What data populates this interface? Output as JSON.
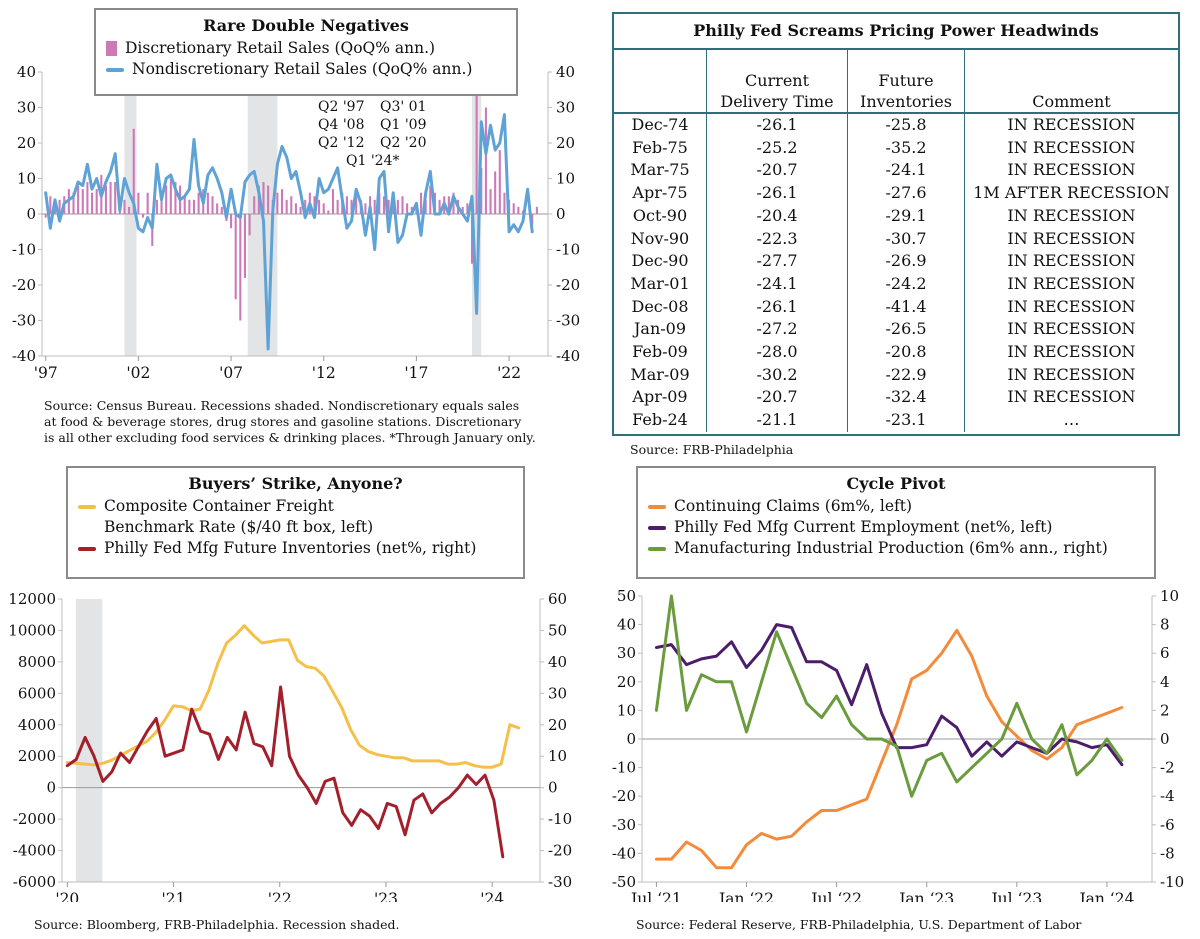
{
  "panels": {
    "retail": {
      "title": "Rare Double Negatives",
      "legend": [
        "Discretionary Retail Sales (QoQ% ann.)",
        "Nondiscretionary Retail Sales (QoQ% ann.)"
      ],
      "annotation": [
        "Q2 '97",
        "Q3' 01",
        "Q4 '08",
        "Q1 '09",
        "Q2 '12",
        "Q2 '20",
        "Q1 '24*"
      ],
      "source": [
        "Source: Census Bureau. Recessions shaded. Nondiscretionary equals sales",
        "at food & beverage stores, drug stores and gasoline stations. Discretionary",
        "is all other excluding food services & drinking places. *Through January only."
      ]
    },
    "table": {
      "title": "Philly Fed Screams Pricing Power Headwinds",
      "headers": [
        "",
        "Current\nDelivery Time",
        "Future\nInventories",
        "Comment"
      ],
      "rows": [
        [
          "Dec-74",
          "-26.1",
          "-25.8",
          "IN RECESSION"
        ],
        [
          "Feb-75",
          "-25.2",
          "-35.2",
          "IN RECESSION"
        ],
        [
          "Mar-75",
          "-20.7",
          "-24.1",
          "IN RECESSION"
        ],
        [
          "Apr-75",
          "-26.1",
          "-27.6",
          "1M AFTER RECESSION"
        ],
        [
          "Oct-90",
          "-20.4",
          "-29.1",
          "IN RECESSION"
        ],
        [
          "Nov-90",
          "-22.3",
          "-30.7",
          "IN RECESSION"
        ],
        [
          "Dec-90",
          "-27.7",
          "-26.9",
          "IN RECESSION"
        ],
        [
          "Mar-01",
          "-24.1",
          "-24.2",
          "IN RECESSION"
        ],
        [
          "Dec-08",
          "-26.1",
          "-41.4",
          "IN RECESSION"
        ],
        [
          "Jan-09",
          "-27.2",
          "-26.5",
          "IN RECESSION"
        ],
        [
          "Feb-09",
          "-28.0",
          "-20.8",
          "IN RECESSION"
        ],
        [
          "Mar-09",
          "-30.2",
          "-22.9",
          "IN RECESSION"
        ],
        [
          "Apr-09",
          "-20.7",
          "-32.4",
          "IN RECESSION"
        ],
        [
          "Feb-24",
          "-21.1",
          "-23.1",
          "…"
        ]
      ],
      "source": "Source: FRB-Philadelphia"
    },
    "freight": {
      "title": "Buyers’ Strike, Anyone?",
      "legend": [
        "Composite Container Freight Benchmark Rate ($/40 ft box, left)",
        "Philly Fed Mfg Future Inventories (net%, right)"
      ],
      "source": "Source: Bloomberg, FRB-Philadelphia. Recession shaded."
    },
    "cycle": {
      "title": "Cycle Pivot",
      "legend": [
        "Continuing Claims (6m%, left)",
        "Philly Fed Mfg Current Employment (net%, left)",
        "Manufacturing Industrial Production (6m% ann., right)"
      ],
      "source": "Source: Federal Reserve, FRB-Philadelphia, U.S. Department of Labor"
    }
  },
  "colors": {
    "discretionary": "#cc79b8",
    "nondiscretionary": "#5fa3d6",
    "freight": "#f5c04a",
    "inventories": "#a31f2b",
    "claims": "#f28b3a",
    "employment": "#4b1d6b",
    "production": "#6a9b3c",
    "recession": "#e3e4e6",
    "table_border": "#2f6f79"
  },
  "chart_data": [
    {
      "id": "retail",
      "type": "bar+line",
      "title": "Rare Double Negatives",
      "x_start": 1997.0,
      "x_step": 0.25,
      "xticks": [
        "'97",
        "'02",
        "'07",
        "'12",
        "'17",
        "'22"
      ],
      "xtick_values": [
        1997,
        2002,
        2007,
        2012,
        2017,
        2022
      ],
      "ylim": [
        -40,
        40
      ],
      "yticks_left": [
        -40,
        -30,
        -20,
        -10,
        0,
        10,
        20,
        30,
        40
      ],
      "yticks_right": [
        -40,
        -30,
        -20,
        -10,
        0,
        10,
        20,
        30,
        40
      ],
      "recessions": [
        [
          2001.25,
          2001.9
        ],
        [
          2007.9,
          2009.5
        ],
        [
          2020.0,
          2020.5
        ]
      ],
      "series": [
        {
          "name": "Discretionary Retail Sales (QoQ% ann.)",
          "kind": "bar",
          "values": [
            -1,
            5,
            2,
            4,
            5,
            7,
            6,
            8,
            7,
            9,
            6,
            7,
            11,
            8,
            9,
            9,
            3,
            4,
            2,
            24,
            6,
            -1,
            6,
            -9,
            4,
            5,
            8,
            10,
            9,
            8,
            5,
            4,
            4,
            6,
            7,
            6,
            5,
            3,
            2,
            -2,
            -4,
            -24,
            -30,
            -18,
            -6,
            5,
            8,
            9,
            8,
            4,
            6,
            7,
            4,
            5,
            3,
            2,
            4,
            6,
            5,
            4,
            3,
            1,
            7,
            4,
            6,
            5,
            4,
            5,
            4,
            3,
            5,
            4,
            6,
            5,
            4,
            3,
            4,
            5,
            3,
            2,
            3,
            6,
            4,
            8,
            6,
            4,
            5,
            5,
            6,
            4,
            2,
            3,
            -14,
            36,
            13,
            30,
            7,
            12,
            18,
            6,
            4,
            3,
            2,
            1,
            0,
            -3,
            2
          ]
        },
        {
          "name": "Nondiscretionary Retail Sales (QoQ% ann.)",
          "kind": "line",
          "values": [
            6,
            -4,
            4,
            -2,
            3,
            4,
            5,
            9,
            8,
            14,
            7,
            10,
            5,
            9,
            12,
            17,
            1,
            10,
            6,
            3,
            -4,
            -5,
            -1,
            -4,
            14,
            4,
            10,
            11,
            7,
            4,
            5,
            7,
            21,
            8,
            3,
            11,
            13,
            10,
            6,
            -1,
            7,
            0,
            -1,
            9,
            11,
            12,
            6,
            -2,
            -38,
            1,
            14,
            19,
            16,
            10,
            12,
            6,
            -1,
            3,
            -1,
            10,
            6,
            7,
            10,
            13,
            4,
            -4,
            -2,
            7,
            3,
            -6,
            2,
            -10,
            10,
            12,
            -5,
            6,
            -8,
            -6,
            0,
            0,
            3,
            -6,
            6,
            12,
            0,
            0,
            3,
            0,
            5,
            2,
            0,
            -2,
            5,
            -28,
            26,
            17,
            25,
            18,
            20,
            28,
            -5,
            -3,
            -5,
            -2,
            7,
            -5
          ]
        }
      ]
    },
    {
      "id": "table",
      "type": "table",
      "title": "Philly Fed Screams Pricing Power Headwinds",
      "columns": [
        "",
        "Current Delivery Time",
        "Future Inventories",
        "Comment"
      ]
    },
    {
      "id": "freight",
      "type": "line",
      "title": "Buyers’ Strike, Anyone?",
      "x_start": 2020.0,
      "x_step": 0.08333,
      "xticks": [
        "'20",
        "'21",
        "'22",
        "'23",
        "'24"
      ],
      "xtick_values": [
        2020,
        2021,
        2022,
        2023,
        2024
      ],
      "ylim_left": [
        -6000,
        12000
      ],
      "yticks_left": [
        -6000,
        -4000,
        -2000,
        0,
        2000,
        4000,
        6000,
        8000,
        10000,
        12000
      ],
      "ylim_right": [
        -30,
        60
      ],
      "yticks_right": [
        -30,
        -20,
        -10,
        0,
        10,
        20,
        30,
        40,
        50,
        60
      ],
      "recessions": [
        [
          2020.08,
          2020.33
        ]
      ],
      "series": [
        {
          "name": "Composite Container Freight Benchmark Rate ($/40 ft box, left)",
          "axis": "left",
          "values": [
            1600,
            1550,
            1500,
            1450,
            1550,
            1750,
            2050,
            2350,
            2650,
            2950,
            3500,
            4300,
            5200,
            5150,
            4900,
            5000,
            6200,
            7900,
            9200,
            9700,
            10300,
            9700,
            9200,
            9300,
            9400,
            9400,
            8100,
            7700,
            7600,
            7100,
            6100,
            5100,
            3700,
            2700,
            2300,
            2100,
            2000,
            1900,
            1900,
            1700,
            1700,
            1700,
            1700,
            1500,
            1500,
            1600,
            1400,
            1300,
            1300,
            1500,
            4000,
            3800
          ]
        },
        {
          "name": "Philly Fed Mfg Future Inventories (net%, right)",
          "axis": "right",
          "values": [
            7,
            9,
            16,
            10,
            2,
            5,
            11,
            8,
            13,
            18,
            22,
            10,
            11,
            12,
            25,
            18,
            17,
            9,
            16,
            12,
            24,
            14,
            13,
            7,
            32,
            10,
            4,
            0,
            -5,
            2,
            3,
            -8,
            -12,
            -7,
            -9,
            -13,
            -5,
            -6,
            -15,
            -4,
            -2,
            -8,
            -5,
            -3,
            0,
            4,
            1,
            4,
            -4,
            -22
          ]
        }
      ]
    },
    {
      "id": "cycle",
      "type": "line",
      "title": "Cycle Pivot",
      "x_start": 2021.5,
      "x_step": 0.08333,
      "xticks": [
        "Jul ‘21",
        "Jan ‘22",
        "Jul ‘22",
        "Jan ‘23",
        "Jul ‘23",
        "Jan ‘24"
      ],
      "xtick_values": [
        2021.5,
        2022.0,
        2022.5,
        2023.0,
        2023.5,
        2024.0
      ],
      "ylim_left": [
        -50,
        50
      ],
      "yticks_left": [
        -50,
        -40,
        -30,
        -20,
        -10,
        0,
        10,
        20,
        30,
        40,
        50
      ],
      "ylim_right": [
        -10,
        10
      ],
      "yticks_right": [
        -10,
        -8,
        -6,
        -4,
        -2,
        0,
        2,
        4,
        6,
        8,
        10
      ],
      "series": [
        {
          "name": "Continuing Claims (6m%, left)",
          "axis": "left",
          "values": [
            -42,
            -42,
            -36,
            -39,
            -45,
            -45,
            -37,
            -33,
            -35,
            -34,
            -29,
            -25,
            -25,
            -23,
            -21,
            -8,
            5,
            21,
            24,
            30,
            38,
            29,
            15,
            6,
            1,
            -4,
            -7,
            -3,
            5,
            7,
            9,
            11
          ]
        },
        {
          "name": "Philly Fed Mfg Current Employment (net%, left)",
          "axis": "left",
          "values": [
            32,
            33,
            26,
            28,
            29,
            34,
            25,
            31,
            40,
            39,
            27,
            27,
            24,
            12,
            26,
            9,
            -3,
            -3,
            -2,
            8,
            4,
            -6,
            -1,
            -6,
            -1,
            -3,
            -5,
            0,
            -1,
            -3,
            -2,
            -9
          ]
        },
        {
          "name": "Manufacturing Industrial Production (6m% ann., right)",
          "axis": "right",
          "values": [
            2,
            10,
            2,
            4.5,
            4,
            4,
            0.5,
            4,
            7.5,
            5,
            2.5,
            1.5,
            3,
            1,
            0,
            0,
            -0.5,
            -4,
            -1.5,
            -1,
            -3,
            -2,
            -1,
            0,
            2.5,
            0,
            -1,
            1,
            -2.5,
            -1.5,
            0,
            -1.5
          ]
        }
      ]
    }
  ]
}
